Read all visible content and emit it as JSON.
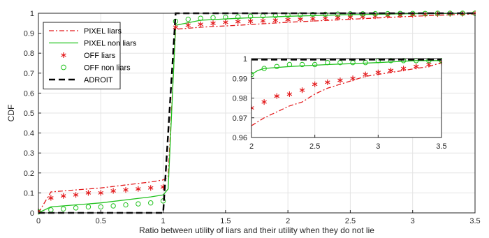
{
  "chart_data": [
    {
      "type": "line",
      "xlabel": "Ratio between utility of liars and their utility when they do not lie",
      "ylabel": "CDF",
      "xlim": [
        0,
        3.5
      ],
      "ylim": [
        0,
        1
      ],
      "xticks": [
        0,
        0.5,
        1,
        1.5,
        2,
        2.5,
        3,
        3.5
      ],
      "xtick_labels": [
        "0",
        "0.5",
        "1",
        "1.5",
        "2",
        "2.5",
        "3",
        "3.5"
      ],
      "yticks": [
        0,
        0.1,
        0.2,
        0.3,
        0.4,
        0.5,
        0.6,
        0.7,
        0.8,
        0.9,
        1
      ],
      "ytick_labels": [
        "0",
        "0.1",
        "0.2",
        "0.3",
        "0.4",
        "0.5",
        "0.6",
        "0.7",
        "0.8",
        "0.9",
        "1"
      ],
      "grid": true,
      "legend_position": "top-left",
      "series": [
        {
          "name": "PIXEL liars",
          "style": "dash-dot",
          "color": "#e31a1c",
          "points": [
            [
              0,
              0
            ],
            [
              0.1,
              0.105
            ],
            [
              0.3,
              0.115
            ],
            [
              0.5,
              0.125
            ],
            [
              0.7,
              0.14
            ],
            [
              0.9,
              0.155
            ],
            [
              1.0,
              0.165
            ],
            [
              1.04,
              0.18
            ],
            [
              1.1,
              0.92
            ],
            [
              1.3,
              0.93
            ],
            [
              1.6,
              0.94
            ],
            [
              2.0,
              0.955
            ],
            [
              2.5,
              0.97
            ],
            [
              3.0,
              0.985
            ],
            [
              3.5,
              0.997
            ]
          ]
        },
        {
          "name": "PIXEL non liars",
          "style": "solid",
          "color": "#22c21f",
          "points": [
            [
              0,
              0
            ],
            [
              0.1,
              0.03
            ],
            [
              0.5,
              0.05
            ],
            [
              0.9,
              0.08
            ],
            [
              1.0,
              0.09
            ],
            [
              1.04,
              0.12
            ],
            [
              1.1,
              0.94
            ],
            [
              1.3,
              0.965
            ],
            [
              1.6,
              0.975
            ],
            [
              2.0,
              0.985
            ],
            [
              2.5,
              0.993
            ],
            [
              3.0,
              0.998
            ],
            [
              3.5,
              1.0
            ]
          ]
        },
        {
          "name": "OFF liars",
          "style": "asterisk",
          "color": "#e31a1c",
          "points": [
            [
              0,
              0.01
            ],
            [
              0.1,
              0.075
            ],
            [
              0.2,
              0.085
            ],
            [
              0.3,
              0.09
            ],
            [
              0.4,
              0.1
            ],
            [
              0.5,
              0.1
            ],
            [
              0.6,
              0.11
            ],
            [
              0.7,
              0.115
            ],
            [
              0.8,
              0.12
            ],
            [
              0.9,
              0.125
            ],
            [
              1.0,
              0.13
            ],
            [
              1.1,
              0.93
            ],
            [
              1.2,
              0.94
            ],
            [
              1.3,
              0.945
            ],
            [
              1.4,
              0.95
            ],
            [
              1.5,
              0.955
            ],
            [
              1.6,
              0.958
            ],
            [
              1.7,
              0.96
            ],
            [
              1.8,
              0.962
            ],
            [
              1.9,
              0.965
            ],
            [
              2.0,
              0.968
            ],
            [
              2.1,
              0.97
            ],
            [
              2.2,
              0.972
            ],
            [
              2.3,
              0.975
            ],
            [
              2.4,
              0.978
            ],
            [
              2.5,
              0.98
            ],
            [
              2.6,
              0.982
            ],
            [
              2.7,
              0.985
            ],
            [
              2.8,
              0.988
            ],
            [
              2.9,
              0.99
            ],
            [
              3.0,
              0.992
            ],
            [
              3.1,
              0.994
            ],
            [
              3.2,
              0.996
            ],
            [
              3.3,
              0.997
            ],
            [
              3.4,
              0.998
            ],
            [
              3.5,
              1.0
            ]
          ]
        },
        {
          "name": "OFF non liars",
          "style": "circle",
          "color": "#22c21f",
          "points": [
            [
              0,
              0.005
            ],
            [
              0.1,
              0.015
            ],
            [
              0.2,
              0.02
            ],
            [
              0.3,
              0.025
            ],
            [
              0.4,
              0.03
            ],
            [
              0.5,
              0.03
            ],
            [
              0.6,
              0.035
            ],
            [
              0.7,
              0.04
            ],
            [
              0.8,
              0.045
            ],
            [
              0.9,
              0.05
            ],
            [
              1.0,
              0.06
            ],
            [
              1.1,
              0.96
            ],
            [
              1.2,
              0.97
            ],
            [
              1.3,
              0.975
            ],
            [
              1.4,
              0.978
            ],
            [
              1.5,
              0.98
            ],
            [
              1.6,
              0.982
            ],
            [
              1.7,
              0.985
            ],
            [
              1.8,
              0.987
            ],
            [
              1.9,
              0.988
            ],
            [
              2.0,
              0.99
            ],
            [
              2.1,
              0.992
            ],
            [
              2.2,
              0.994
            ],
            [
              2.3,
              0.995
            ],
            [
              2.4,
              0.996
            ],
            [
              2.5,
              0.997
            ],
            [
              2.6,
              0.997
            ],
            [
              2.7,
              0.998
            ],
            [
              2.8,
              0.998
            ],
            [
              2.9,
              0.999
            ],
            [
              3.0,
              0.999
            ],
            [
              3.1,
              0.999
            ],
            [
              3.2,
              1.0
            ],
            [
              3.3,
              1.0
            ],
            [
              3.4,
              1.0
            ],
            [
              3.5,
              1.0
            ]
          ]
        },
        {
          "name": "ADROIT",
          "style": "dashed",
          "color": "#000000",
          "points": [
            [
              0,
              0
            ],
            [
              1.0,
              0
            ],
            [
              1.0,
              0.0
            ],
            [
              1.1,
              1.0
            ],
            [
              3.5,
              1.0
            ]
          ]
        }
      ]
    },
    {
      "type": "line",
      "xlim": [
        2,
        3.5
      ],
      "ylim": [
        0.96,
        1
      ],
      "xticks": [
        2,
        2.5,
        3,
        3.5
      ],
      "xtick_labels": [
        "2",
        "2.5",
        "3",
        "3.5"
      ],
      "yticks": [
        0.96,
        0.97,
        0.98,
        0.99,
        1
      ],
      "ytick_labels": [
        "0.96",
        "0.97",
        "0.98",
        "0.99",
        "1"
      ],
      "grid": true,
      "series": [
        {
          "style": "dash-dot",
          "color": "#e31a1c",
          "points": [
            [
              2.0,
              0.966
            ],
            [
              2.1,
              0.97
            ],
            [
              2.2,
              0.973
            ],
            [
              2.3,
              0.976
            ],
            [
              2.4,
              0.978
            ],
            [
              2.5,
              0.982
            ],
            [
              2.6,
              0.985
            ],
            [
              2.7,
              0.987
            ],
            [
              2.8,
              0.989
            ],
            [
              2.9,
              0.991
            ],
            [
              3.0,
              0.992
            ],
            [
              3.1,
              0.993
            ],
            [
              3.2,
              0.994
            ],
            [
              3.3,
              0.995
            ],
            [
              3.4,
              0.996
            ],
            [
              3.5,
              0.998
            ]
          ]
        },
        {
          "style": "solid",
          "color": "#22c21f",
          "points": [
            [
              2.0,
              0.992
            ],
            [
              2.05,
              0.994
            ],
            [
              2.1,
              0.995
            ],
            [
              2.3,
              0.996
            ],
            [
              2.6,
              0.997
            ],
            [
              3.0,
              0.998
            ],
            [
              3.3,
              0.999
            ],
            [
              3.5,
              0.999
            ]
          ]
        },
        {
          "style": "asterisk",
          "color": "#e31a1c",
          "points": [
            [
              2.0,
              0.975
            ],
            [
              2.1,
              0.978
            ],
            [
              2.2,
              0.981
            ],
            [
              2.3,
              0.982
            ],
            [
              2.4,
              0.984
            ],
            [
              2.5,
              0.987
            ],
            [
              2.6,
              0.988
            ],
            [
              2.7,
              0.989
            ],
            [
              2.8,
              0.99
            ],
            [
              2.9,
              0.992
            ],
            [
              3.0,
              0.993
            ],
            [
              3.1,
              0.994
            ],
            [
              3.2,
              0.995
            ],
            [
              3.3,
              0.996
            ],
            [
              3.4,
              0.997
            ],
            [
              3.5,
              0.998
            ]
          ]
        },
        {
          "style": "circle",
          "color": "#22c21f",
          "points": [
            [
              2.0,
              0.992
            ],
            [
              2.1,
              0.995
            ],
            [
              2.2,
              0.996
            ],
            [
              2.3,
              0.997
            ],
            [
              2.4,
              0.997
            ],
            [
              2.5,
              0.997
            ],
            [
              2.6,
              0.998
            ],
            [
              2.7,
              0.998
            ],
            [
              2.8,
              0.998
            ],
            [
              2.9,
              0.998
            ],
            [
              3.0,
              0.999
            ],
            [
              3.1,
              0.999
            ],
            [
              3.2,
              0.999
            ],
            [
              3.3,
              0.999
            ],
            [
              3.4,
              0.999
            ],
            [
              3.5,
              0.999
            ]
          ]
        },
        {
          "style": "dashed",
          "color": "#000000",
          "points": [
            [
              2.0,
              0.9995
            ],
            [
              3.5,
              0.9995
            ]
          ]
        }
      ]
    }
  ]
}
